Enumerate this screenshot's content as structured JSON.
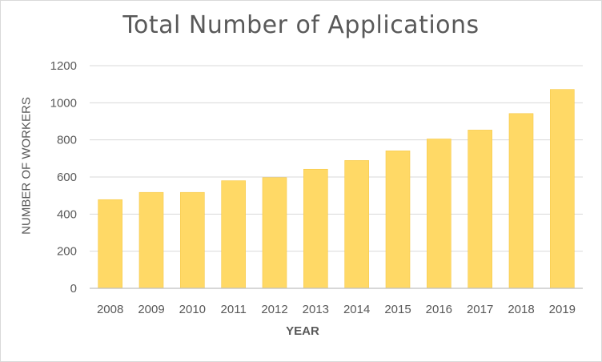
{
  "chart_data": {
    "type": "bar",
    "title": "Total Number of Applications",
    "xlabel": "YEAR",
    "ylabel": "NUMBER OF WORKERS",
    "categories": [
      "2008",
      "2009",
      "2010",
      "2011",
      "2012",
      "2013",
      "2014",
      "2015",
      "2016",
      "2017",
      "2018",
      "2019"
    ],
    "values": [
      478,
      517,
      517,
      580,
      597,
      642,
      689,
      741,
      805,
      853,
      942,
      1072
    ],
    "ylim": [
      0,
      1200
    ],
    "yticks": [
      "0",
      "200",
      "400",
      "600",
      "800",
      "1000",
      "1200"
    ],
    "grid": true,
    "legend": "none",
    "colors": {
      "bar": "#ffd966",
      "bar_edge": "#f7c948",
      "grid": "#d9d9d9",
      "axis": "#bfbfbf",
      "text": "#595959"
    }
  }
}
